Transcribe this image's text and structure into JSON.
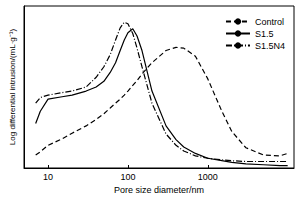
{
  "chart_data": {
    "type": "line",
    "x_label": "Pore size diameter/nm",
    "y_label": "Log differential intrusion/(mL·g⁻¹)",
    "log": "x",
    "grid": false,
    "legend": "top-right",
    "tick_labels": "x",
    "xlim": [
      5,
      12000
    ],
    "xticks": [
      10,
      100,
      1000
    ],
    "ylim": [
      0,
      0.2
    ],
    "x": [
      7,
      8,
      10,
      15,
      20,
      30,
      40,
      50,
      60,
      70,
      80,
      90,
      100,
      115,
      130,
      150,
      200,
      300,
      400,
      500,
      700,
      1000,
      1500,
      2000,
      3000,
      5000,
      8000,
      10000
    ],
    "series": [
      {
        "name": "Control",
        "color": "#000000",
        "line_style": "dashed",
        "values": [
          0.016,
          0.02,
          0.028,
          0.036,
          0.043,
          0.052,
          0.06,
          0.067,
          0.074,
          0.08,
          0.085,
          0.09,
          0.095,
          0.102,
          0.108,
          0.116,
          0.13,
          0.145,
          0.149,
          0.148,
          0.138,
          0.11,
          0.07,
          0.045,
          0.025,
          0.016,
          0.015,
          0.018
        ]
      },
      {
        "name": "S1.5",
        "color": "#000000",
        "line_style": "solid",
        "values": [
          0.055,
          0.07,
          0.085,
          0.088,
          0.09,
          0.095,
          0.1,
          0.107,
          0.118,
          0.13,
          0.145,
          0.158,
          0.167,
          0.172,
          0.163,
          0.145,
          0.095,
          0.052,
          0.035,
          0.026,
          0.018,
          0.012,
          0.009,
          0.007,
          0.005,
          0.004,
          0.003,
          0.003
        ]
      },
      {
        "name": "S1.5N4",
        "color": "#000000",
        "line_style": "dashdot",
        "values": [
          0.08,
          0.087,
          0.09,
          0.093,
          0.095,
          0.1,
          0.112,
          0.125,
          0.14,
          0.158,
          0.173,
          0.18,
          0.178,
          0.166,
          0.148,
          0.125,
          0.08,
          0.042,
          0.028,
          0.021,
          0.015,
          0.012,
          0.01,
          0.009,
          0.008,
          0.008,
          0.008,
          0.008
        ]
      }
    ]
  }
}
